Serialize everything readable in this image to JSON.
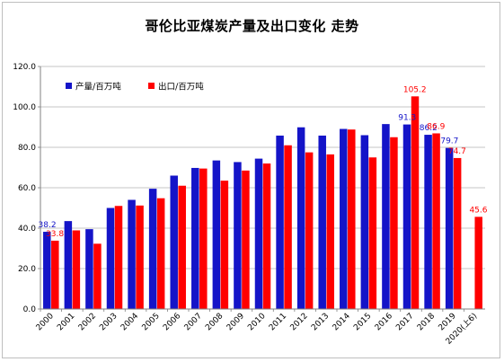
{
  "chart_data": {
    "type": "bar",
    "title": "哥伦比亚煤炭产量及出口变化 走势",
    "categories": [
      "2000",
      "2001",
      "2002",
      "2003",
      "2004",
      "2005",
      "2006",
      "2007",
      "2008",
      "2009",
      "2010",
      "2011",
      "2012",
      "2013",
      "2014",
      "2015",
      "2016",
      "2017",
      "2018",
      "2019",
      "2020(上6)"
    ],
    "series": [
      {
        "name": "产量/百万吨",
        "color": "#1414c8",
        "values": [
          38.2,
          43.5,
          39.5,
          50.0,
          54.0,
          59.5,
          66.0,
          69.8,
          73.5,
          72.7,
          74.4,
          85.8,
          89.9,
          85.8,
          89.1,
          86.0,
          91.5,
          91.3,
          86.2,
          79.7,
          null
        ]
      },
      {
        "name": "出口/百万吨",
        "color": "#ff0000",
        "values": [
          33.8,
          38.9,
          32.3,
          51.0,
          51.2,
          54.8,
          61.0,
          69.5,
          63.5,
          68.5,
          72.0,
          81.0,
          77.5,
          76.5,
          88.8,
          75.0,
          85.0,
          105.2,
          86.9,
          74.7,
          45.6
        ]
      }
    ],
    "data_labels": [
      {
        "series": 0,
        "index": 0,
        "text": "38.2"
      },
      {
        "series": 1,
        "index": 0,
        "text": "33.8"
      },
      {
        "series": 0,
        "index": 17,
        "text": "91.3"
      },
      {
        "series": 1,
        "index": 17,
        "text": "105.2"
      },
      {
        "series": 0,
        "index": 18,
        "text": "86.2"
      },
      {
        "series": 1,
        "index": 18,
        "text": "86.9"
      },
      {
        "series": 0,
        "index": 19,
        "text": "79.7"
      },
      {
        "series": 1,
        "index": 19,
        "text": "74.7"
      },
      {
        "series": 1,
        "index": 20,
        "text": "45.6"
      }
    ],
    "ylim": [
      0,
      120
    ],
    "yticks": [
      "0.0",
      "20.0",
      "40.0",
      "60.0",
      "80.0",
      "100.0",
      "120.0"
    ],
    "grid": true,
    "legend_position": "top-left"
  }
}
